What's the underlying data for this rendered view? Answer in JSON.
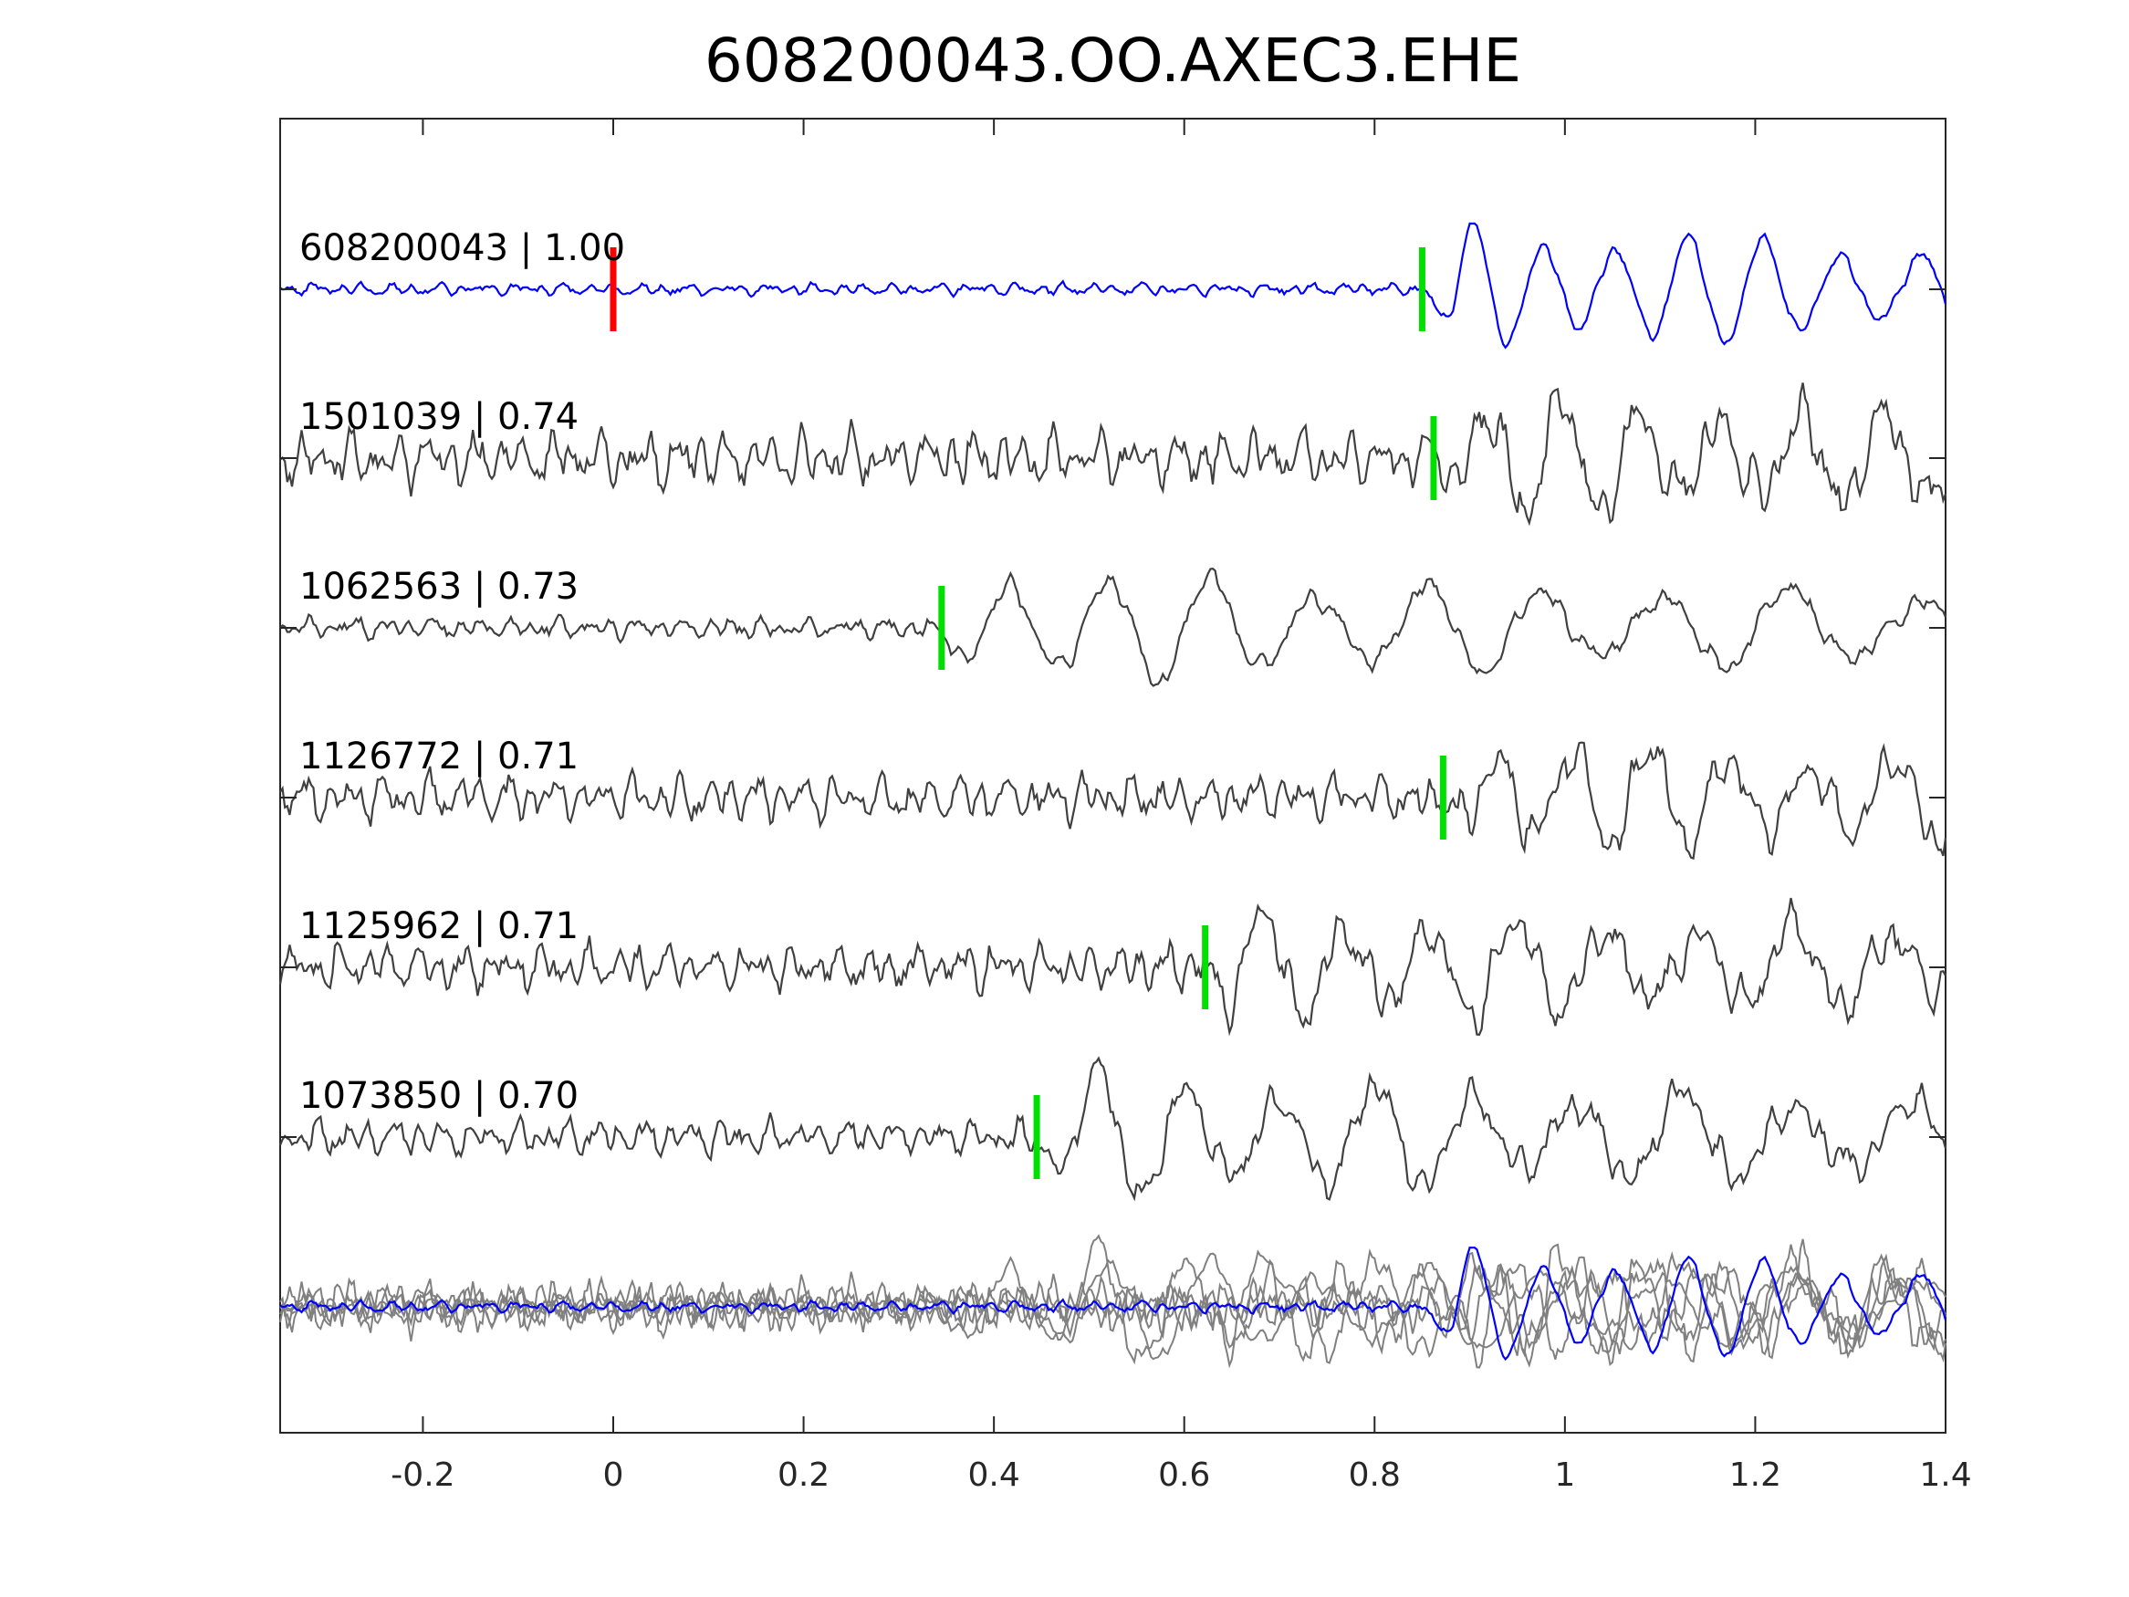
{
  "chart_data": {
    "type": "line",
    "title": "608200043.OO.AXEC3.EHE",
    "xlabel": "",
    "ylabel": "",
    "xlim": [
      -0.35,
      1.4
    ],
    "xticks": [
      -0.2,
      0,
      0.2,
      0.4,
      0.6,
      0.8,
      1,
      1.2,
      1.4
    ],
    "xtick_labels": [
      "-0.2",
      "0",
      "0.2",
      "0.4",
      "0.6",
      "0.8",
      "1",
      "1.2",
      "1.4"
    ],
    "grid": false,
    "colors": {
      "template": "#0000ff",
      "neighbor": "#404040",
      "stack_neighbor": "#808080",
      "origin_pick": "#ff0000",
      "arrival_pick": "#00e000"
    },
    "series": [
      {
        "label": "608200043 | 1.00",
        "arrival": 0.85,
        "origin": 0.0,
        "color": "template",
        "onset": 0.85,
        "noise": 0.12,
        "amp": 1.25,
        "freq": 14,
        "seed": 3
      },
      {
        "label": "1501039 | 0.74",
        "arrival": 0.862,
        "color": "neighbor",
        "onset": 0.86,
        "noise": 0.55,
        "amp": 1.15,
        "freq": 13,
        "seed": 7
      },
      {
        "label": "1062563 | 0.73",
        "arrival": 0.345,
        "color": "neighbor",
        "onset": 0.34,
        "noise": 0.2,
        "amp": 1.2,
        "freq": 10,
        "seed": 11
      },
      {
        "label": "1126772 | 0.71",
        "arrival": 0.872,
        "color": "neighbor",
        "onset": 0.87,
        "noise": 0.45,
        "amp": 1.1,
        "freq": 13,
        "seed": 19
      },
      {
        "label": "1125962 | 0.71",
        "arrival": 0.622,
        "color": "neighbor",
        "onset": 0.62,
        "noise": 0.45,
        "amp": 1.15,
        "freq": 12,
        "seed": 23
      },
      {
        "label": "1073850 | 0.70",
        "arrival": 0.445,
        "color": "neighbor",
        "onset": 0.44,
        "noise": 0.35,
        "amp": 1.25,
        "freq": 11,
        "seed": 29
      }
    ],
    "stack": {
      "description_visible": false
    }
  }
}
